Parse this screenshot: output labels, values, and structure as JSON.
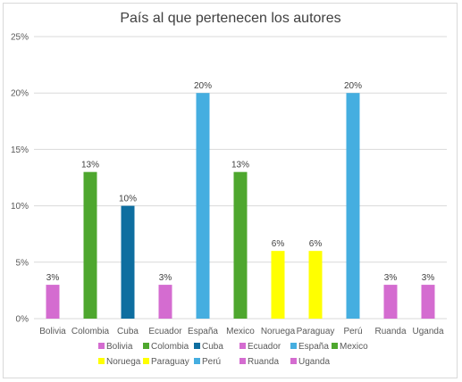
{
  "chart_data": {
    "type": "bar",
    "title": "País al que pertenecen los autores",
    "categories": [
      "Bolivia",
      "Colombia",
      "Cuba",
      "Ecuador",
      "España",
      "Mexico",
      "Noruega",
      "Paraguay",
      "Perú",
      "Ruanda",
      "Uganda"
    ],
    "values": [
      3,
      13,
      10,
      3,
      20,
      13,
      6,
      6,
      20,
      3,
      3
    ],
    "data_labels": [
      "3%",
      "13%",
      "10%",
      "3%",
      "20%",
      "13%",
      "6%",
      "6%",
      "20%",
      "3%",
      "3%"
    ],
    "colors": [
      "#D46CD0",
      "#4EA72E",
      "#0E6EA0",
      "#D46CD0",
      "#45AEE0",
      "#4EA72E",
      "#FFFF00",
      "#FFFF00",
      "#45AEE0",
      "#D46CD0",
      "#D46CD0"
    ],
    "ylim": [
      0,
      25
    ],
    "yticks": [
      0,
      5,
      10,
      15,
      20,
      25
    ],
    "ytick_labels": [
      "0%",
      "5%",
      "10%",
      "15%",
      "20%",
      "25%"
    ],
    "grid": true,
    "legend": {
      "placement": "bottom",
      "entries": [
        "Bolivia",
        "Colombia",
        "Cuba",
        "Ecuador",
        "España",
        "Mexico",
        "Noruega",
        "Paraguay",
        "Perú",
        "Ruanda",
        "Uganda"
      ]
    }
  }
}
